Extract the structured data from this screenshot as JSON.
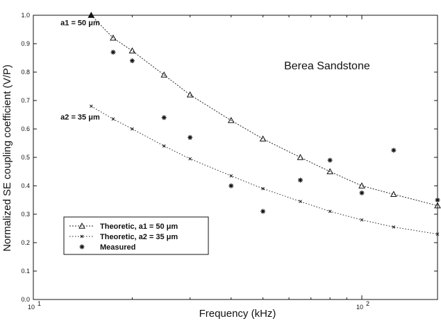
{
  "chart_data": {
    "type": "line",
    "xlabel": "Frequency (kHz)",
    "ylabel": "Normalized SE coupling coefficient (V/P)",
    "x_scale": "log",
    "xlim": [
      10,
      170
    ],
    "ylim": [
      0,
      1.0
    ],
    "x_ticks": [
      10,
      100
    ],
    "x_tick_labels": [
      [
        "10",
        "1"
      ],
      [
        "10",
        "2"
      ]
    ],
    "y_ticks": [
      0,
      0.1,
      0.2,
      0.3,
      0.4,
      0.5,
      0.6,
      0.7,
      0.8,
      0.9,
      1.0
    ],
    "y_tick_labels": [
      "0.0",
      "0.1",
      "0.2",
      "0.3",
      "0.4",
      "0.5",
      "0.6",
      "0.7",
      "0.8",
      "0.9",
      "1.0"
    ],
    "grid": false,
    "legend_position": "bottom-left",
    "annotations": [
      {
        "text": "Berea Sandstone",
        "x": 58,
        "y": 0.81,
        "kind": "title"
      },
      {
        "text": "a1 = 50 μm",
        "x": 12.1,
        "y": 0.965,
        "kind": "label"
      },
      {
        "text": "a2 = 35 μm",
        "x": 12.1,
        "y": 0.633,
        "kind": "label"
      }
    ],
    "series": [
      {
        "name": "Theoretic, a1 = 50 μm",
        "marker": "triangle",
        "line_style": "dotted",
        "x": [
          15,
          17.5,
          20,
          25,
          30,
          40,
          50,
          65,
          80,
          100,
          125,
          170
        ],
        "y": [
          1.0,
          0.92,
          0.875,
          0.79,
          0.72,
          0.63,
          0.565,
          0.5,
          0.45,
          0.4,
          0.37,
          0.33
        ]
      },
      {
        "name": "Theoretic, a2 = 35 μm",
        "marker": "x",
        "line_style": "dotted",
        "x": [
          15,
          17.5,
          20,
          25,
          30,
          40,
          50,
          65,
          80,
          100,
          125,
          170
        ],
        "y": [
          0.68,
          0.635,
          0.6,
          0.54,
          0.495,
          0.435,
          0.39,
          0.345,
          0.31,
          0.28,
          0.255,
          0.23
        ]
      },
      {
        "name": "Measured",
        "marker": "asterisk",
        "line_style": "none",
        "x": [
          17.5,
          20,
          25,
          30,
          40,
          50,
          65,
          80,
          100,
          125,
          170
        ],
        "y": [
          0.87,
          0.84,
          0.64,
          0.57,
          0.4,
          0.31,
          0.42,
          0.49,
          0.375,
          0.525,
          0.35
        ]
      }
    ]
  }
}
